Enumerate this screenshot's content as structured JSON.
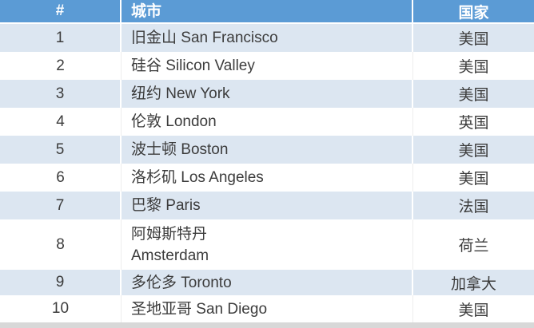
{
  "table": {
    "columns": [
      {
        "label": "#"
      },
      {
        "label": "城市"
      },
      {
        "label": "国家"
      }
    ],
    "rows": [
      {
        "rank": "1",
        "city": "旧金山 San Francisco",
        "country": "美国"
      },
      {
        "rank": "2",
        "city": "硅谷 Silicon Valley",
        "country": "美国"
      },
      {
        "rank": "3",
        "city": "纽约 New York",
        "country": "美国"
      },
      {
        "rank": "4",
        "city": "伦敦 London",
        "country": "英国"
      },
      {
        "rank": "5",
        "city": "波士顿 Boston",
        "country": "美国"
      },
      {
        "rank": "6",
        "city": "洛杉矶 Los Angeles",
        "country": "美国"
      },
      {
        "rank": "7",
        "city": "巴黎 Paris",
        "country": "法国"
      },
      {
        "rank": "8",
        "city": "阿姆斯特丹\nAmsterdam",
        "country": "荷兰"
      },
      {
        "rank": "9",
        "city": "多伦多 Toronto",
        "country": "加拿大"
      },
      {
        "rank": "10",
        "city": "圣地亚哥 San Diego",
        "country": "美国"
      }
    ]
  },
  "colors": {
    "header_bg": "#5B9BD5",
    "header_text": "#FFFFFF",
    "row_alt_bg": "#DCE6F1",
    "row_bg": "#FFFFFF",
    "body_text": "#3C3C3C",
    "bottom_strip": "#D8D8D8"
  }
}
